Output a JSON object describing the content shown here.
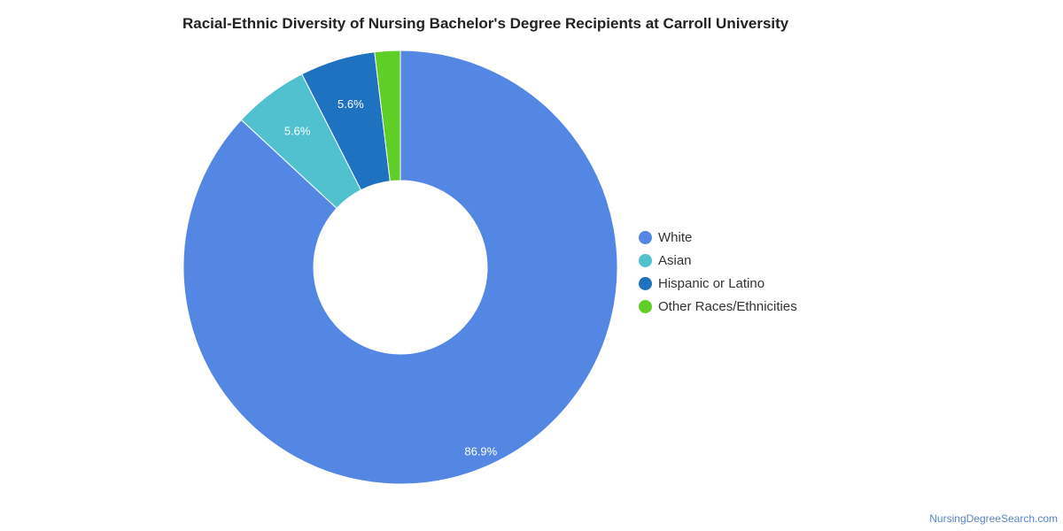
{
  "chart_data": {
    "type": "pie",
    "title": "Racial-Ethnic Diversity of Nursing Bachelor's Degree Recipients at Carroll University",
    "donut": true,
    "categories": [
      "White",
      "Asian",
      "Hispanic or Latino",
      "Other Races/Ethnicities"
    ],
    "values": [
      86.9,
      5.6,
      5.6,
      1.9
    ],
    "data_labels": [
      "86.9%",
      "5.6%",
      "5.6%",
      ""
    ],
    "colors": [
      "#5486e3",
      "#52c1cf",
      "#1f72bf",
      "#5fce26"
    ],
    "legend_position": "right"
  },
  "credit": "NursingDegreeSearch.com"
}
